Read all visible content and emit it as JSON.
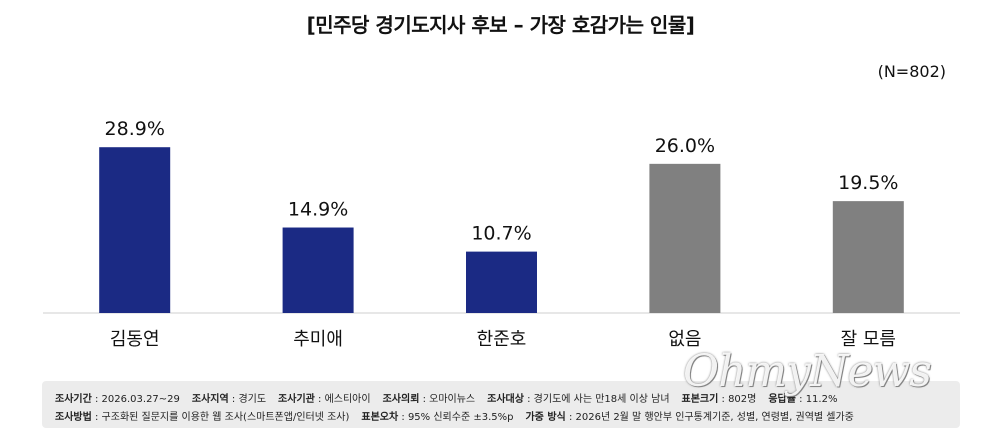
{
  "title": "[민주당 경기도지사 후보 – 가장 호감가는 인물]",
  "sample": "(N=802)",
  "chart_data": {
    "type": "bar",
    "categories": [
      "김동연",
      "추미애",
      "한준호",
      "없음",
      "잘 모름"
    ],
    "values": [
      28.9,
      14.9,
      10.7,
      26.0,
      19.5
    ],
    "value_labels": [
      "28.9%",
      "14.9%",
      "10.7%",
      "26.0%",
      "19.5%"
    ],
    "bar_colors": [
      "#1b2a84",
      "#1b2a84",
      "#1b2a84",
      "#808080",
      "#808080"
    ],
    "unit": "%",
    "ylim": [
      0,
      38
    ],
    "grid": false,
    "legend": "none"
  },
  "footer": {
    "row1": [
      {
        "label": "조사기간",
        "value": " : 2026.03.27~29"
      },
      {
        "label": "조사지역",
        "value": " : 경기도"
      },
      {
        "label": "조사기관",
        "value": " : 에스티아이"
      },
      {
        "label": "조사의뢰",
        "value": " : 오마이뉴스"
      },
      {
        "label": "조사대상",
        "value": " : 경기도에 사는 만18세 이상 남녀"
      },
      {
        "label": "표본크기",
        "value": " : 802명"
      },
      {
        "label": "응답률",
        "value": " : 11.2%"
      }
    ],
    "row2": [
      {
        "label": "조사방법",
        "value": " : 구조화된 질문지를 이용한 웹 조사(스마트폰앱/인터넷 조사)"
      },
      {
        "label": "표본오차",
        "value": " : 95% 신뢰수준 ±3.5%p"
      },
      {
        "label": "가중 방식",
        "value": " : 2026년 2월 말 행안부 인구통계기준, 성별, 연령별, 권역별 셀가중"
      }
    ]
  },
  "watermark": "OhmyNews"
}
